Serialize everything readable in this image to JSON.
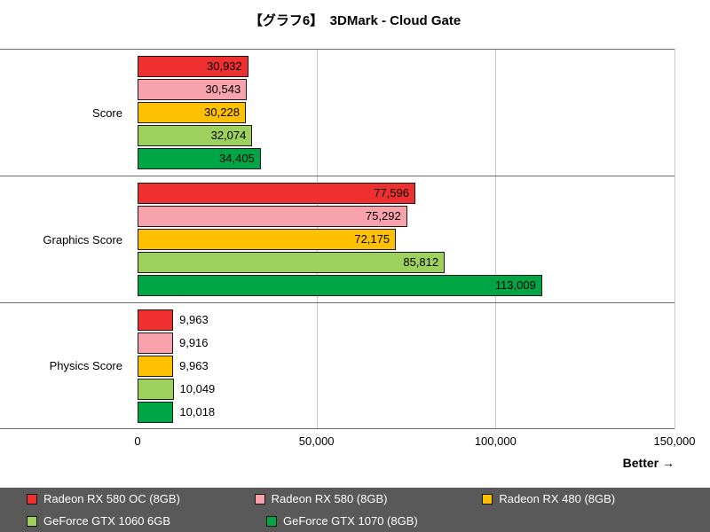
{
  "title": "【グラフ6】　3DMark - Cloud Gate",
  "better_label": "Better →",
  "chart_data": {
    "type": "bar",
    "orientation": "horizontal",
    "title": "【グラフ6】　3DMark - Cloud Gate",
    "categories": [
      "Score",
      "Graphics Score",
      "Physics Score"
    ],
    "series": [
      {
        "name": "Radeon RX 580 OC (8GB)",
        "color": "#ee3130",
        "values": [
          30932,
          77596,
          9963
        ]
      },
      {
        "name": "Radeon RX 580 (8GB)",
        "color": "#f8a3ab",
        "values": [
          30543,
          75292,
          9916
        ]
      },
      {
        "name": "Radeon RX 480 (8GB)",
        "color": "#ffc000",
        "values": [
          30228,
          72175,
          9963
        ]
      },
      {
        "name": "GeForce GTX 1060 6GB",
        "color": "#9ed05e",
        "values": [
          32074,
          85812,
          10049
        ]
      },
      {
        "name": "GeForce GTX 1070 (8GB)",
        "color": "#00a546",
        "values": [
          34405,
          113009,
          10018
        ]
      }
    ],
    "xlim": [
      0,
      150000
    ],
    "xticks": [
      0,
      50000,
      100000,
      150000
    ],
    "xtick_labels": [
      "0",
      "50,000",
      "100,000",
      "150,000"
    ],
    "grid": "vertical-gridlines",
    "legend_position": "bottom",
    "better_direction": "right"
  }
}
